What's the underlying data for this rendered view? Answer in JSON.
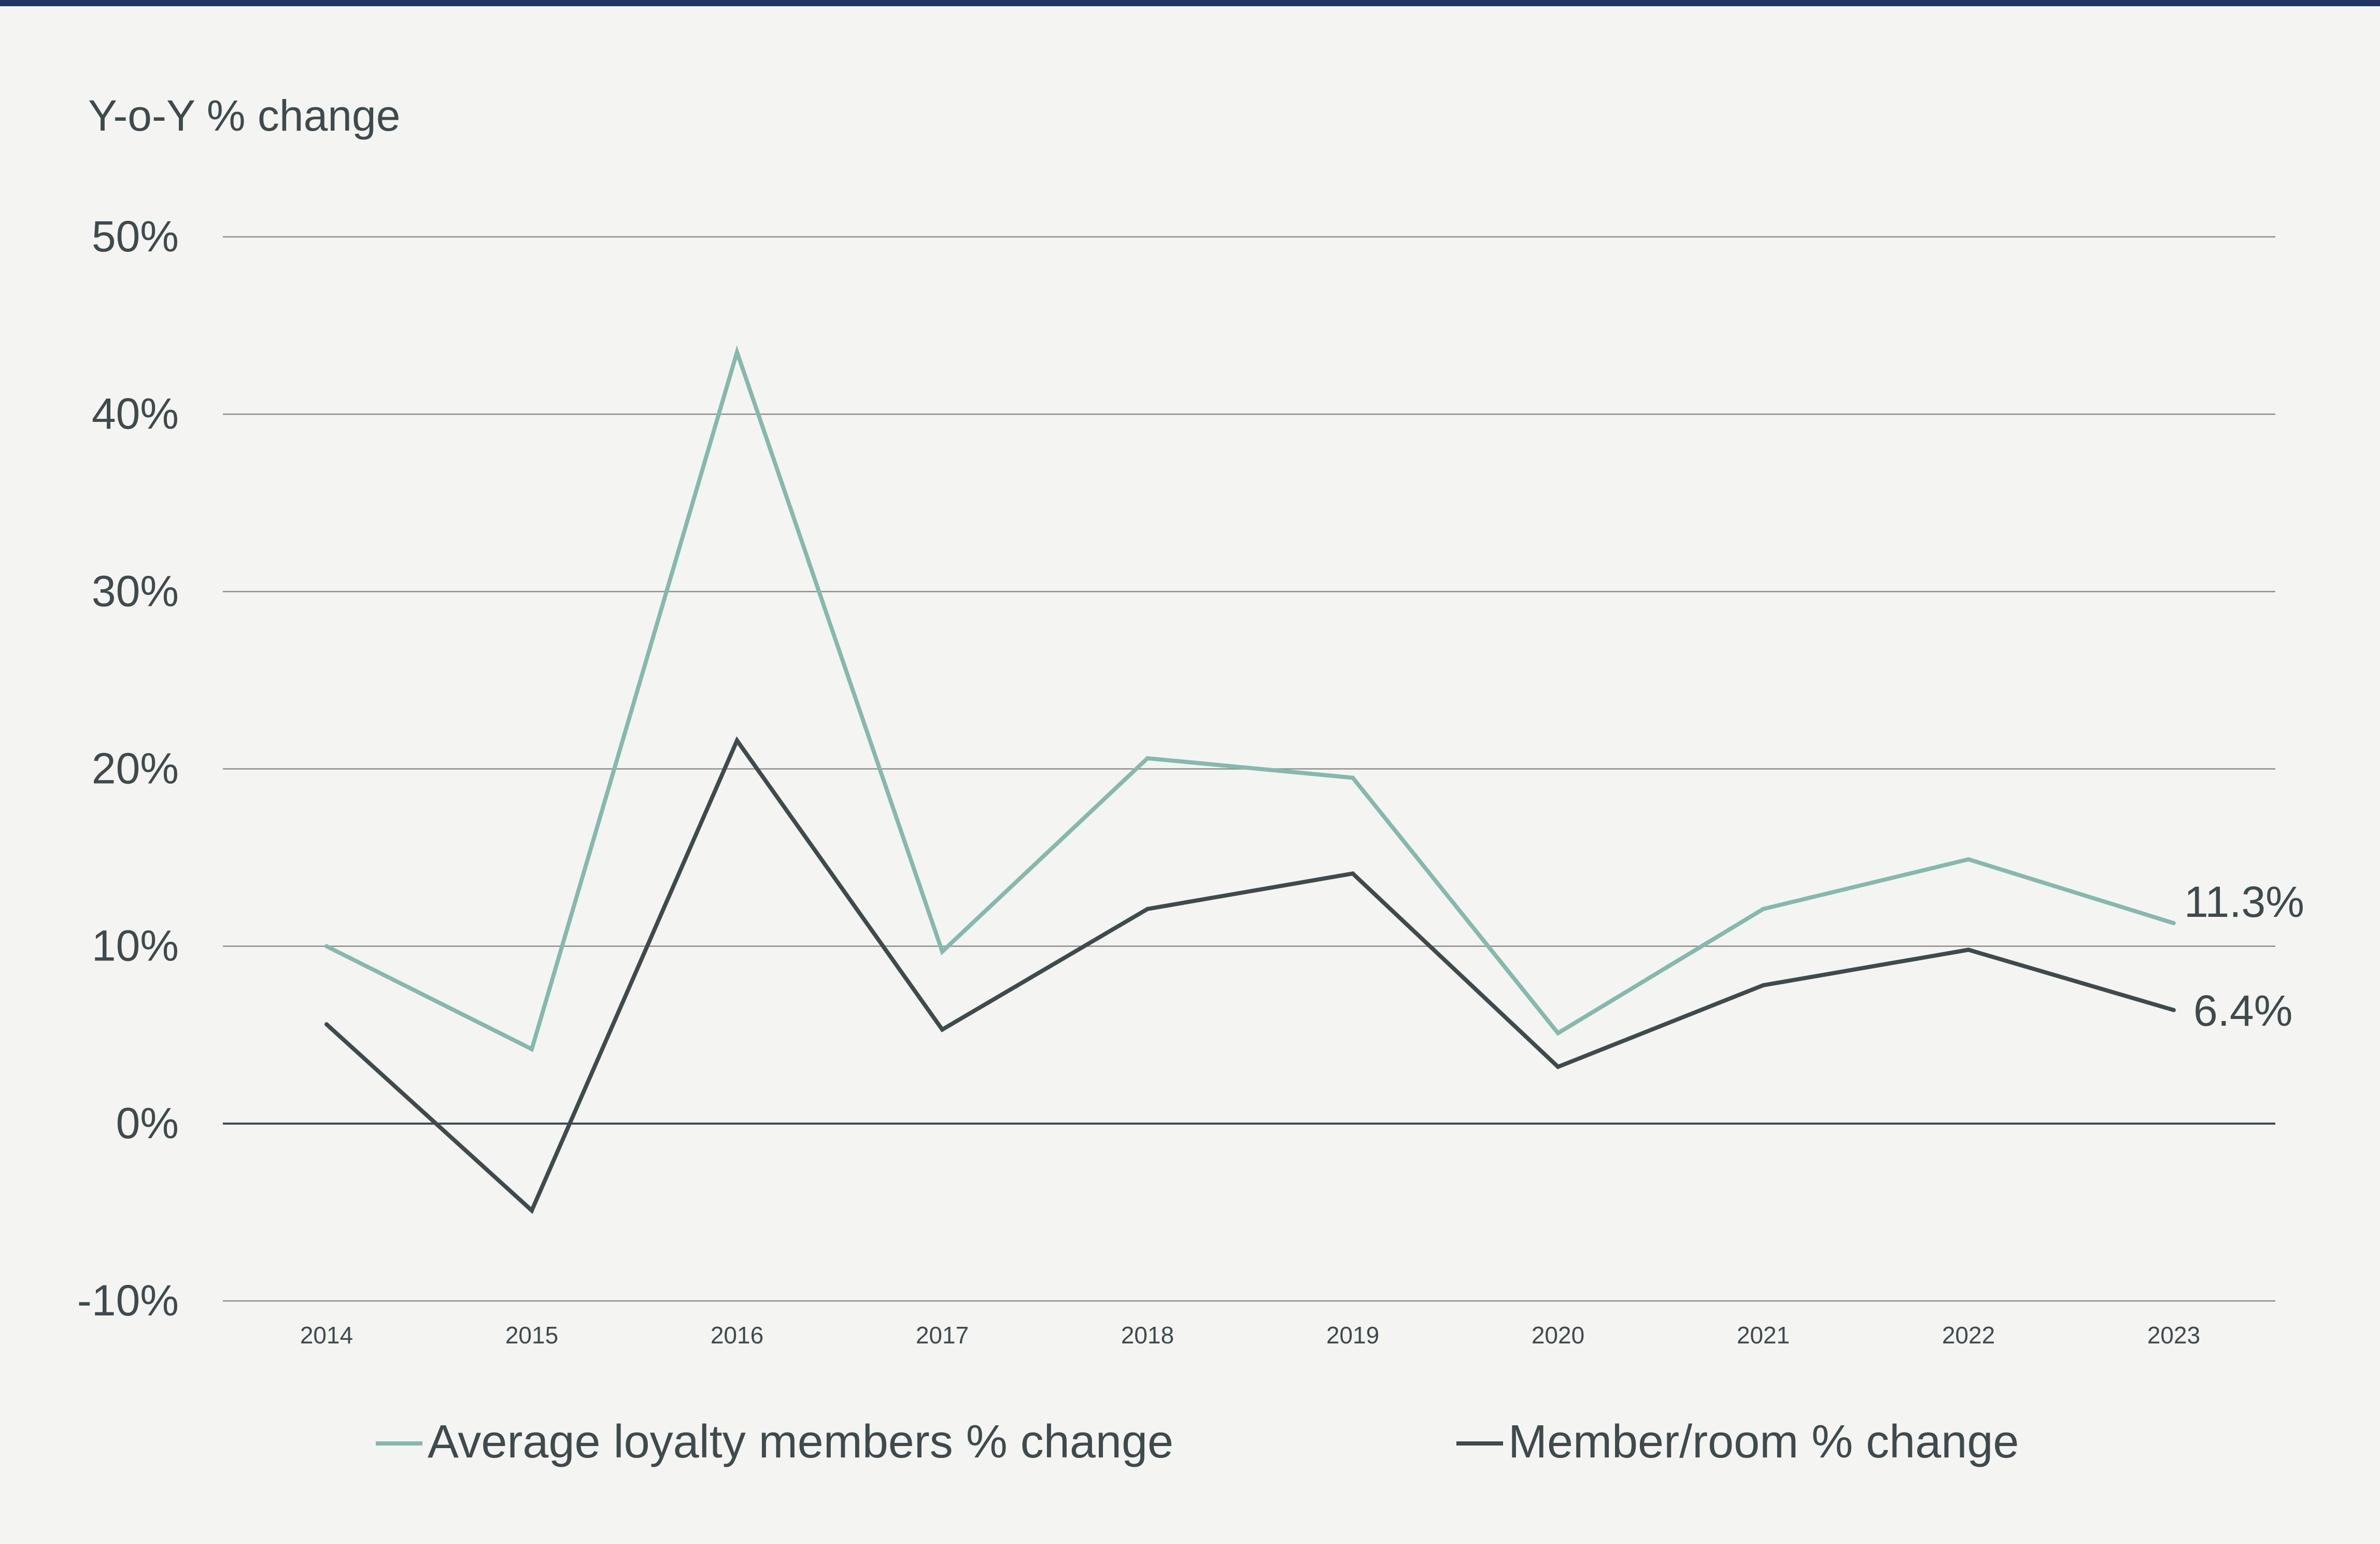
{
  "chart_data": {
    "type": "line",
    "ylabel": "Y-o-Y % change",
    "ylim": [
      -10,
      50
    ],
    "yticks": [
      -10,
      0,
      10,
      20,
      30,
      40,
      50
    ],
    "ytick_labels": [
      "-10%",
      "0%",
      "10%",
      "20%",
      "30%",
      "40%",
      "50%"
    ],
    "categories": [
      "2014",
      "2015",
      "2016",
      "2017",
      "2018",
      "2019",
      "2020",
      "2021",
      "2022",
      "2023"
    ],
    "series": [
      {
        "name": "Average loyalty members % change",
        "color": "#85b9ad",
        "values": [
          10.0,
          4.2,
          43.5,
          9.7,
          20.6,
          19.5,
          5.1,
          12.1,
          14.9,
          11.3
        ],
        "end_label": "11.3%"
      },
      {
        "name": "Member/room % change",
        "color": "#3f4a4d",
        "values": [
          5.6,
          -4.9,
          21.6,
          5.3,
          12.1,
          14.1,
          3.2,
          7.8,
          9.8,
          6.4
        ],
        "end_label": "6.4%"
      }
    ],
    "grid": true,
    "legend": "bottom"
  },
  "colors": {
    "background": "#f4f5f3",
    "top_rule": "#1f3566",
    "text": "#3f4a4d",
    "grid": "#8a8e8d",
    "zero_line": "#3f4a4d"
  }
}
